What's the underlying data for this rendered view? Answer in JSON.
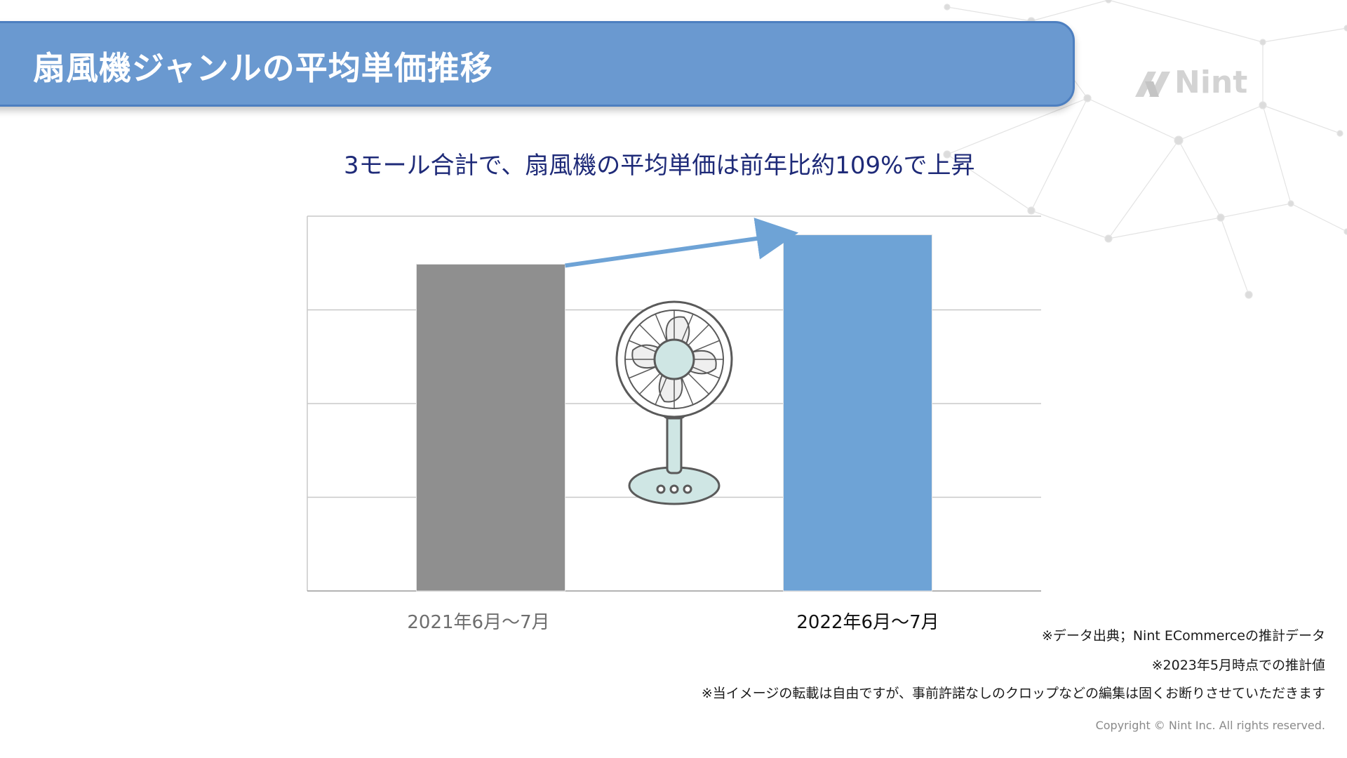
{
  "header": {
    "title": "扇風機ジャンルの平均単価推移",
    "logo_text": "Nint"
  },
  "subtitle": "3モール合計で、扇風機の平均単価は前年比約109%で上昇",
  "chart_data": {
    "type": "bar",
    "categories": [
      "2021年6月〜7月",
      "2022年6月〜7月"
    ],
    "values": [
      100,
      109
    ],
    "ylim": [
      0,
      114.7
    ],
    "grid": true,
    "gridlines": 4,
    "colors": [
      "#8f8f8f",
      "#6ea3d6"
    ],
    "annotation": "arrow-increase",
    "illustration": "electric-fan"
  },
  "footnotes": [
    "※データ出典；Nint ECommerceの推計データ",
    "※2023年5月時点での推計値",
    "※当イメージの転載は自由ですが、事前許諾なしのクロップなどの編集は固くお断りさせていただきます"
  ],
  "copyright": "Copyright © Nint Inc. All rights reserved.",
  "colors": {
    "banner": "#6a99d0",
    "banner_border": "#4d7fc0",
    "subtitle": "#1e2a78",
    "arrow": "#6ea3d6",
    "fan_fill": "#cfe6e4",
    "fan_stroke": "#5a5a5a"
  }
}
